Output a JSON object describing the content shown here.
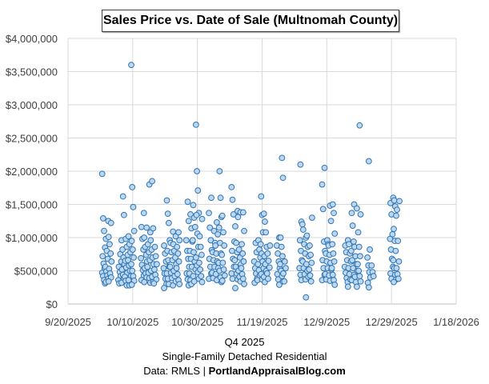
{
  "chart_data": {
    "type": "scatter",
    "title": "Sales Price vs. Date of Sale (Multnomah County)",
    "xlabel": "",
    "ylabel": "",
    "xlim": [
      "9/20/2025",
      "1/18/2026"
    ],
    "ylim": [
      0,
      4000000
    ],
    "x_ticks": [
      "9/20/2025",
      "10/10/2025",
      "10/30/2025",
      "11/19/2025",
      "12/9/2025",
      "12/29/2025",
      "1/18/2026"
    ],
    "y_ticks": [
      "$0",
      "$500,000",
      "$1,000,000",
      "$1,500,000",
      "$2,000,000",
      "$2,500,000",
      "$3,000,000",
      "$3,500,000",
      "$4,000,000"
    ],
    "grid": true,
    "marker_fill": "#bdd7ee",
    "marker_stroke": "#2e75b6",
    "groups": [
      {
        "date": "10/1/2025",
        "prices": [
          1960000,
          1290000,
          1100000,
          850000,
          720000,
          610000,
          540000,
          470000,
          420000,
          360000,
          310000
        ]
      },
      {
        "date": "10/2/2025",
        "prices": [
          1250000,
          980000,
          800000,
          680000,
          560000,
          490000,
          430000,
          380000,
          330000
        ]
      },
      {
        "date": "10/3/2025",
        "prices": [
          1220000,
          1010000,
          900000,
          760000,
          640000,
          530000,
          460000,
          400000,
          340000
        ]
      },
      {
        "date": "10/6/2025",
        "prices": [
          750000,
          640000,
          560000,
          480000,
          420000,
          360000,
          310000
        ]
      },
      {
        "date": "10/7/2025",
        "prices": [
          1620000,
          1340000,
          960000,
          820000,
          700000,
          600000,
          520000,
          440000,
          380000,
          320000
        ]
      },
      {
        "date": "10/8/2025",
        "prices": [
          980000,
          860000,
          740000,
          650000,
          550000,
          470000,
          410000,
          350000,
          280000
        ]
      },
      {
        "date": "10/9/2025",
        "prices": [
          1020000,
          900000,
          780000,
          660000,
          580000,
          500000,
          420000,
          360000,
          280000
        ]
      },
      {
        "date": "10/10/2025",
        "prices": [
          3600000,
          1760000,
          1460000,
          1100000,
          950000,
          820000,
          700000,
          600000,
          500000,
          420000,
          350000,
          290000
        ]
      },
      {
        "date": "10/13/2025",
        "prices": [
          1370000,
          1160000,
          980000,
          820000,
          690000,
          590000,
          510000,
          430000,
          360000
        ]
      },
      {
        "date": "10/14/2025",
        "prices": [
          1150000,
          1000000,
          860000,
          740000,
          640000,
          540000,
          460000,
          400000,
          330000
        ]
      },
      {
        "date": "10/15/2025",
        "prices": [
          1800000,
          1080000,
          900000,
          780000,
          660000,
          560000,
          470000,
          390000,
          320000
        ]
      },
      {
        "date": "10/16/2025",
        "prices": [
          1850000,
          1140000,
          960000,
          820000,
          700000,
          600000,
          500000,
          410000,
          330000
        ]
      },
      {
        "date": "10/17/2025",
        "prices": [
          860000,
          720000,
          600000,
          520000,
          440000,
          370000,
          310000
        ]
      },
      {
        "date": "10/20/2025",
        "prices": [
          880000,
          760000,
          640000,
          540000,
          460000,
          380000,
          300000,
          240000
        ]
      },
      {
        "date": "10/21/2025",
        "prices": [
          1560000,
          1360000,
          1220000,
          960000,
          800000,
          660000,
          560000,
          460000,
          380000,
          300000
        ]
      },
      {
        "date": "10/22/2025",
        "prices": [
          1090000,
          920000,
          780000,
          660000,
          560000,
          470000,
          390000,
          280000
        ]
      },
      {
        "date": "10/23/2025",
        "prices": [
          1020000,
          900000,
          800000,
          700000,
          600000,
          500000,
          420000,
          340000
        ]
      },
      {
        "date": "10/24/2025",
        "prices": [
          1080000,
          960000,
          860000,
          760000,
          640000,
          540000,
          450000,
          360000,
          300000
        ]
      },
      {
        "date": "10/27/2025",
        "prices": [
          1540000,
          1250000,
          960000,
          800000,
          680000,
          560000,
          460000,
          370000,
          280000
        ]
      },
      {
        "date": "10/28/2025",
        "prices": [
          1350000,
          1140000,
          940000,
          800000,
          680000,
          560000,
          460000,
          360000,
          300000
        ]
      },
      {
        "date": "10/29/2025",
        "prices": [
          1490000,
          1300000,
          1160000,
          960000,
          780000,
          640000,
          520000,
          420000,
          340000
        ]
      },
      {
        "date": "10/30/2025",
        "prices": [
          2700000,
          2000000,
          1710000,
          1370000,
          1340000,
          1060000,
          860000,
          700000,
          580000,
          480000,
          380000
        ]
      },
      {
        "date": "10/31/2025",
        "prices": [
          1280000,
          1020000,
          860000,
          740000,
          620000,
          520000,
          420000,
          330000
        ]
      },
      {
        "date": "11/3/2025",
        "prices": [
          1600000,
          1370000,
          1150000,
          960000,
          810000,
          680000,
          560000,
          460000,
          380000
        ]
      },
      {
        "date": "11/4/2025",
        "prices": [
          1100000,
          920000,
          780000,
          660000,
          560000,
          470000,
          390000
        ]
      },
      {
        "date": "11/5/2025",
        "prices": [
          1230000,
          1050000,
          880000,
          760000,
          640000,
          540000,
          450000,
          360000
        ]
      },
      {
        "date": "11/6/2025",
        "prices": [
          2000000,
          1600000,
          1310000,
          1150000,
          920000,
          760000,
          620000,
          500000,
          400000,
          330000
        ]
      },
      {
        "date": "11/7/2025",
        "prices": [
          1330000,
          1080000,
          880000,
          740000,
          620000,
          520000,
          430000,
          350000
        ]
      },
      {
        "date": "11/10/2025",
        "prices": [
          1760000,
          1570000,
          1350000,
          940000,
          800000,
          680000,
          560000,
          460000,
          380000
        ]
      },
      {
        "date": "11/11/2025",
        "prices": [
          1400000,
          1170000,
          920000,
          780000,
          660000,
          560000,
          460000,
          370000,
          240000
        ]
      },
      {
        "date": "11/12/2025",
        "prices": [
          1380000,
          1310000,
          820000,
          700000,
          600000,
          500000,
          410000,
          340000
        ]
      },
      {
        "date": "11/13/2025",
        "prices": [
          1380000,
          1100000,
          900000,
          760000,
          640000,
          540000,
          450000,
          380000,
          300000
        ]
      },
      {
        "date": "11/17/2025",
        "prices": [
          920000,
          780000,
          640000,
          540000,
          460000,
          380000,
          320000
        ]
      },
      {
        "date": "11/18/2025",
        "prices": [
          960000,
          820000,
          700000,
          600000,
          510000,
          430000,
          360000
        ]
      },
      {
        "date": "11/19/2025",
        "prices": [
          1620000,
          1340000,
          1080000,
          900000,
          760000,
          640000,
          540000,
          450000,
          370000
        ]
      },
      {
        "date": "11/20/2025",
        "prices": [
          1360000,
          1240000,
          1080000,
          860000,
          720000,
          600000,
          500000,
          410000,
          330000
        ]
      },
      {
        "date": "11/21/2025",
        "prices": [
          880000,
          760000,
          650000,
          550000,
          460000,
          380000
        ]
      },
      {
        "date": "11/24/2025",
        "prices": [
          1000000,
          880000,
          760000,
          640000,
          540000,
          450000,
          370000,
          290000
        ]
      },
      {
        "date": "11/25/2025",
        "prices": [
          2200000,
          1900000,
          1000000,
          860000,
          720000,
          600000,
          500000,
          420000,
          340000
        ]
      },
      {
        "date": "11/26/2025",
        "prices": [
          640000,
          540000,
          460000,
          340000
        ]
      },
      {
        "date": "12/1/2025",
        "prices": [
          2100000,
          1240000,
          1200000,
          960000,
          800000,
          660000,
          540000,
          440000,
          360000
        ]
      },
      {
        "date": "12/2/2025",
        "prices": [
          1120000,
          900000,
          760000,
          640000,
          540000,
          450000,
          370000
        ]
      },
      {
        "date": "12/3/2025",
        "prices": [
          1000000,
          1030000,
          860000,
          720000,
          600000,
          500000,
          410000,
          100000
        ]
      },
      {
        "date": "12/4/2025",
        "prices": [
          1300000,
          880000,
          740000,
          620000,
          520000,
          430000,
          340000
        ]
      },
      {
        "date": "12/8/2025",
        "prices": [
          2050000,
          1800000,
          1430000,
          940000,
          800000,
          660000,
          540000,
          440000,
          360000
        ]
      },
      {
        "date": "12/9/2025",
        "prices": [
          960000,
          900000,
          760000,
          640000,
          540000,
          450000,
          370000
        ]
      },
      {
        "date": "12/10/2025",
        "prices": [
          1480000,
          1250000,
          880000,
          740000,
          620000,
          520000,
          430000,
          350000
        ]
      },
      {
        "date": "12/11/2025",
        "prices": [
          1500000,
          1370000,
          1060000,
          900000,
          760000,
          640000,
          540000,
          440000,
          360000,
          290000
        ]
      },
      {
        "date": "12/15/2025",
        "prices": [
          880000,
          780000,
          660000,
          560000,
          470000,
          390000,
          330000
        ]
      },
      {
        "date": "12/16/2025",
        "prices": [
          960000,
          900000,
          760000,
          640000,
          540000,
          450000,
          370000,
          260000
        ]
      },
      {
        "date": "12/17/2025",
        "prices": [
          1500000,
          1370000,
          1180000,
          940000,
          800000,
          660000,
          540000,
          440000,
          360000
        ]
      },
      {
        "date": "12/18/2025",
        "prices": [
          1440000,
          860000,
          720000,
          600000,
          500000,
          410000,
          330000,
          260000
        ]
      },
      {
        "date": "12/19/2025",
        "prices": [
          2690000,
          1350000,
          1080000,
          860000,
          720000,
          600000,
          500000,
          420000,
          340000
        ]
      },
      {
        "date": "12/22/2025",
        "prices": [
          2150000,
          820000,
          700000,
          580000,
          480000,
          400000,
          320000,
          250000
        ]
      },
      {
        "date": "12/23/2025",
        "prices": [
          580000,
          480000,
          420000
        ]
      },
      {
        "date": "12/29/2025",
        "prices": [
          1520000,
          1350000,
          1050000,
          980000,
          820000,
          680000,
          560000,
          460000,
          380000
        ]
      },
      {
        "date": "12/30/2025",
        "prices": [
          1600000,
          1560000,
          1470000,
          1330000,
          1130000,
          950000,
          800000,
          660000,
          540000,
          440000,
          370000,
          330000
        ]
      },
      {
        "date": "12/31/2025",
        "prices": [
          1550000,
          1420000,
          950000,
          640000,
          540000,
          450000,
          380000
        ]
      }
    ]
  },
  "footer": {
    "line1": "Q4 2025",
    "line2": "Single-Family Detached Residential",
    "line3_prefix": "Data: RMLS | ",
    "line3_bold": "PortlandAppraisalBlog.com"
  }
}
